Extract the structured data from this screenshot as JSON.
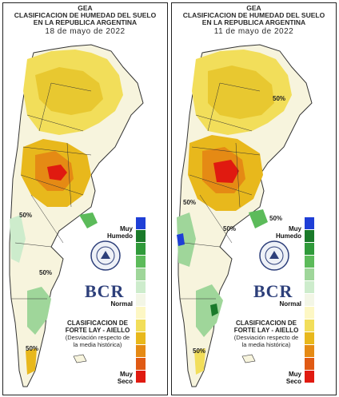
{
  "header": {
    "org": "GEA",
    "title_line1": "CLASIFICACION DE HUMEDAD DEL SUELO",
    "title_line2": "EN LA REPUBLICA ARGENTINA"
  },
  "maps": [
    {
      "date": "18 de mayo de 2022",
      "contour_labels": [
        "50%",
        "50%",
        "50%"
      ]
    },
    {
      "date": "11 de mayo de 2022",
      "contour_labels": [
        "50%",
        "50%",
        "50%",
        "50%",
        "50%"
      ]
    }
  ],
  "legend": {
    "top_label_line1": "Muy",
    "top_label_line2": "Humedo",
    "mid_label": "Normal",
    "bottom_label_line1": "Muy",
    "bottom_label_line2": "Seco",
    "colors": [
      "#1f3fd6",
      "#1a7a2a",
      "#2f9a3a",
      "#5cbb5a",
      "#9fd69a",
      "#cdeccc",
      "#f3f6e6",
      "#fdf7c4",
      "#f2de5a",
      "#e8b81c",
      "#e58a14",
      "#e05a14",
      "#e01a10"
    ]
  },
  "credits": {
    "line1": "CLASIFICACION DE",
    "line2": "FORTE LAY - AIELLO",
    "line3": "(Desviación respecto de",
    "line4": "la media histórica)"
  },
  "logo": {
    "text": "BCR",
    "seal_text": "BOLSA DE COMERCIO DE ROSARIO"
  }
}
